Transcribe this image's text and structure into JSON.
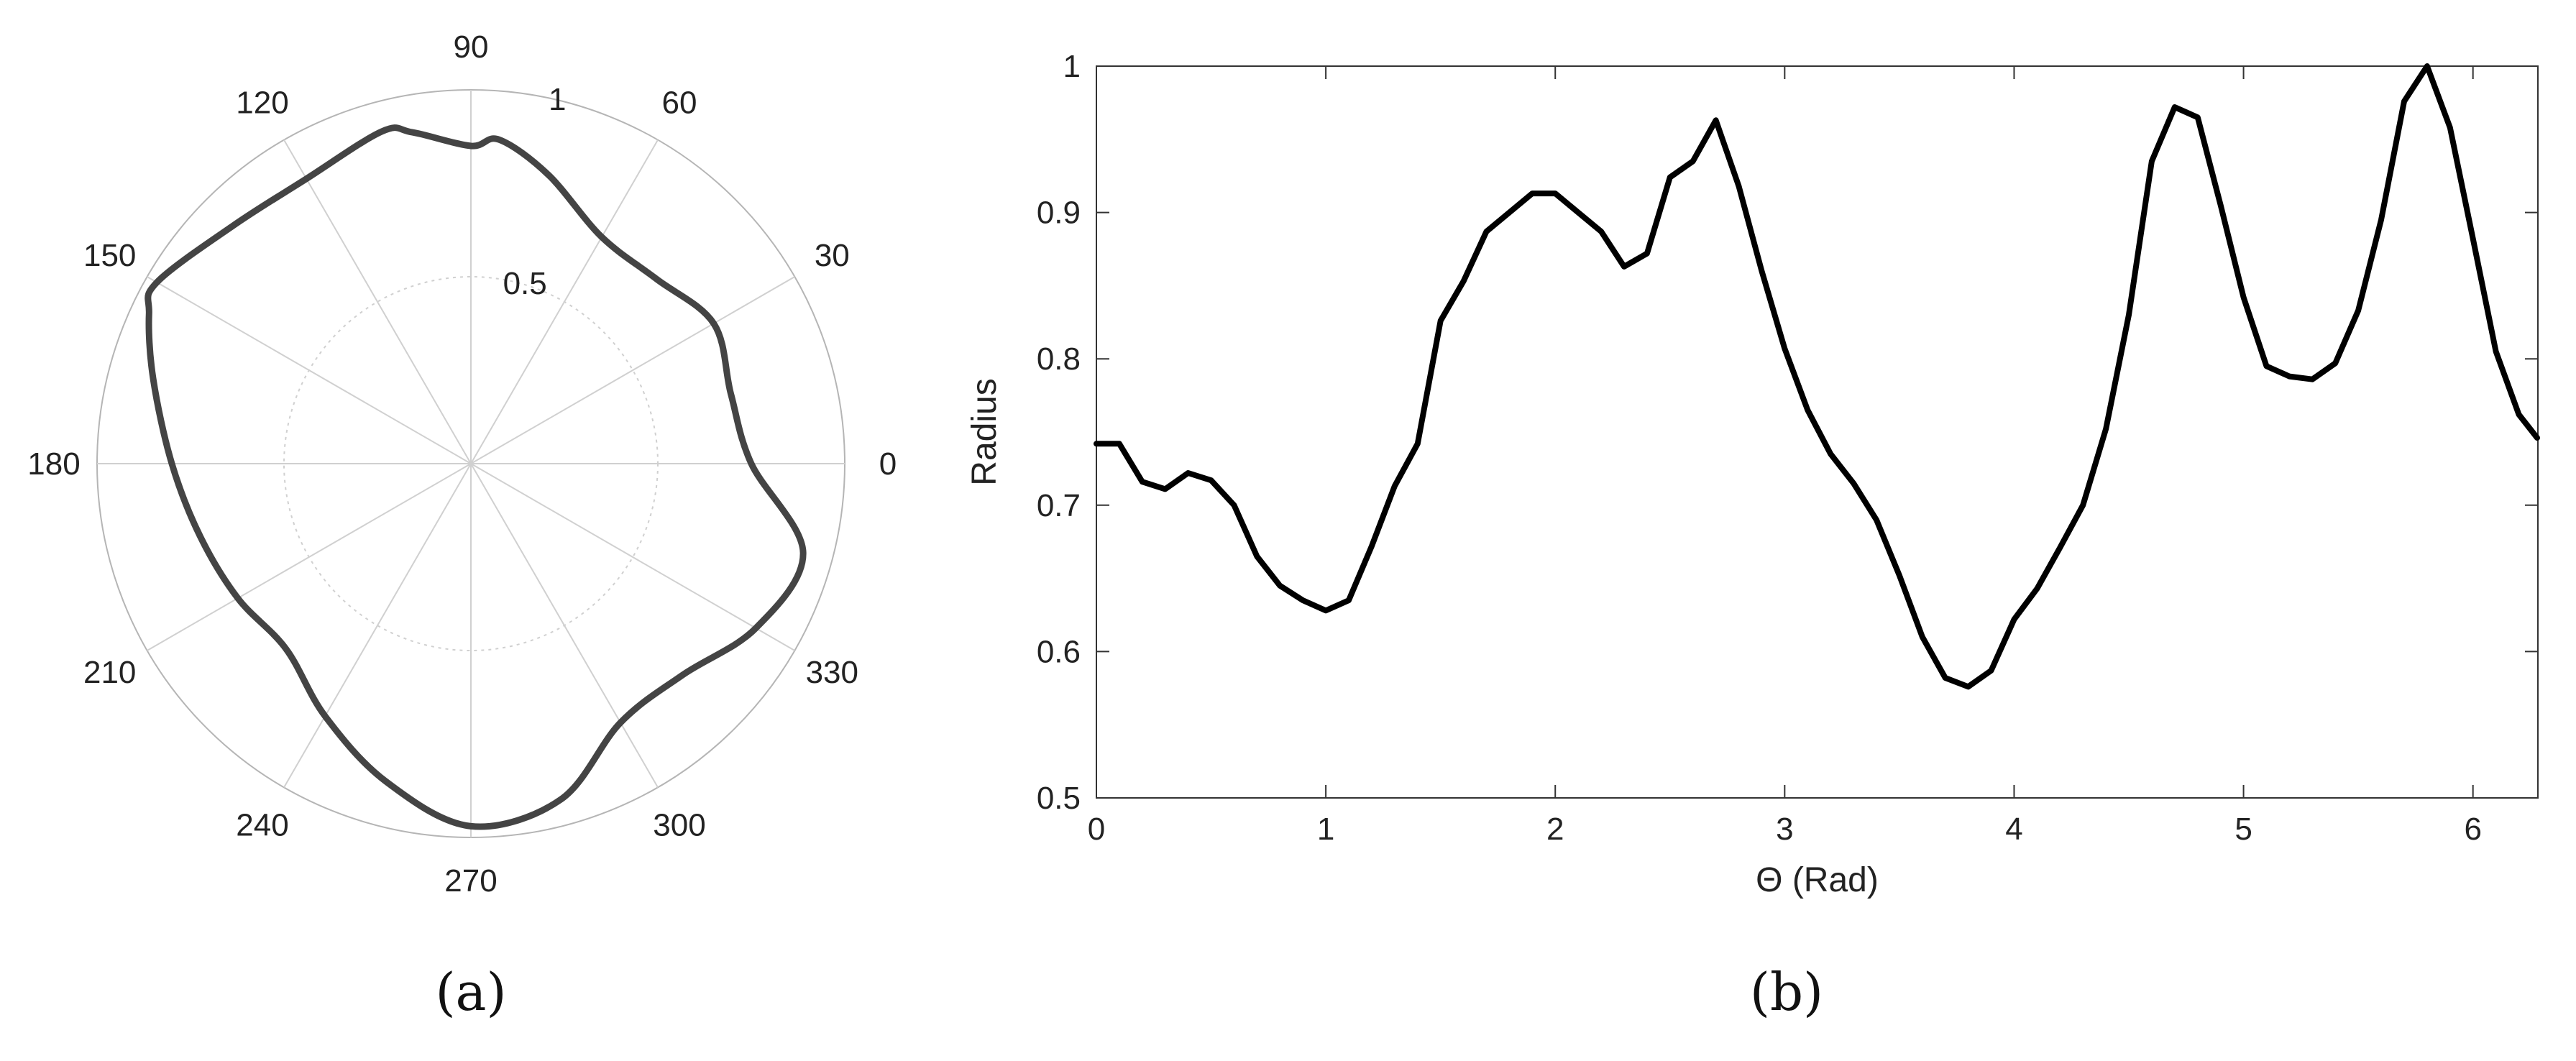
{
  "chart_data": [
    {
      "type": "line",
      "subtype": "polar",
      "panel_label": "(a)",
      "theta_ticks": [
        "0",
        "30",
        "60",
        "90",
        "120",
        "150",
        "180",
        "210",
        "240",
        "270",
        "300",
        "330"
      ],
      "theta_tick_values_deg": [
        0,
        30,
        60,
        90,
        120,
        150,
        180,
        210,
        240,
        270,
        300,
        330
      ],
      "r_ticks": [
        "0.5",
        "1"
      ],
      "r_tick_values": [
        0.5,
        1
      ],
      "rlim": [
        0,
        1
      ],
      "grid": true,
      "line_color": "#444444",
      "grid_color": "#d0d0d0",
      "theta_deg": [
        0,
        15,
        30,
        45,
        60,
        75,
        85,
        90,
        100,
        105,
        120,
        135,
        150,
        155,
        165,
        180,
        195,
        210,
        225,
        240,
        255,
        270,
        285,
        300,
        315,
        330,
        345,
        360
      ],
      "r": [
        0.75,
        0.72,
        0.75,
        0.7,
        0.7,
        0.8,
        0.87,
        0.85,
        0.9,
        0.92,
        0.88,
        0.9,
        0.97,
        0.95,
        0.88,
        0.8,
        0.75,
        0.72,
        0.7,
        0.78,
        0.88,
        0.97,
        0.93,
        0.8,
        0.8,
        0.88,
        0.92,
        0.75
      ]
    },
    {
      "type": "line",
      "panel_label": "(b)",
      "xlabel": "Θ (Rad)",
      "ylabel": "Radius",
      "xlim": [
        0,
        6.283
      ],
      "ylim": [
        0.5,
        1
      ],
      "x_ticks": [
        "0",
        "1",
        "2",
        "3",
        "4",
        "5",
        "6"
      ],
      "x_tick_values": [
        0,
        1,
        2,
        3,
        4,
        5,
        6
      ],
      "y_ticks": [
        "0.5",
        "0.6",
        "0.7",
        "0.8",
        "0.9",
        "1"
      ],
      "y_tick_values": [
        0.5,
        0.6,
        0.7,
        0.8,
        0.9,
        1.0
      ],
      "grid": false,
      "line_color": "#000000",
      "x": [
        0,
        0.1,
        0.2,
        0.3,
        0.4,
        0.5,
        0.6,
        0.7,
        0.8,
        0.9,
        1.0,
        1.1,
        1.2,
        1.3,
        1.4,
        1.5,
        1.6,
        1.7,
        1.8,
        1.9,
        2.0,
        2.1,
        2.2,
        2.3,
        2.4,
        2.5,
        2.6,
        2.7,
        2.8,
        2.9,
        3.0,
        3.1,
        3.2,
        3.3,
        3.4,
        3.5,
        3.6,
        3.7,
        3.8,
        3.9,
        4.0,
        4.1,
        4.2,
        4.3,
        4.4,
        4.5,
        4.6,
        4.7,
        4.8,
        4.9,
        5.0,
        5.1,
        5.2,
        5.3,
        5.4,
        5.5,
        5.6,
        5.7,
        5.8,
        5.9,
        6.0,
        6.1,
        6.2,
        6.28
      ],
      "y": [
        0.742,
        0.742,
        0.716,
        0.711,
        0.722,
        0.717,
        0.7,
        0.665,
        0.645,
        0.635,
        0.628,
        0.635,
        0.672,
        0.713,
        0.742,
        0.826,
        0.853,
        0.887,
        0.9,
        0.913,
        0.913,
        0.9,
        0.887,
        0.863,
        0.872,
        0.924,
        0.935,
        0.963,
        0.918,
        0.86,
        0.807,
        0.765,
        0.735,
        0.715,
        0.69,
        0.652,
        0.61,
        0.582,
        0.576,
        0.587,
        0.622,
        0.643,
        0.671,
        0.7,
        0.752,
        0.83,
        0.935,
        0.972,
        0.965,
        0.905,
        0.842,
        0.795,
        0.788,
        0.786,
        0.797,
        0.833,
        0.895,
        0.976,
        1.0,
        0.958,
        0.882,
        0.805,
        0.762,
        0.746
      ]
    }
  ]
}
